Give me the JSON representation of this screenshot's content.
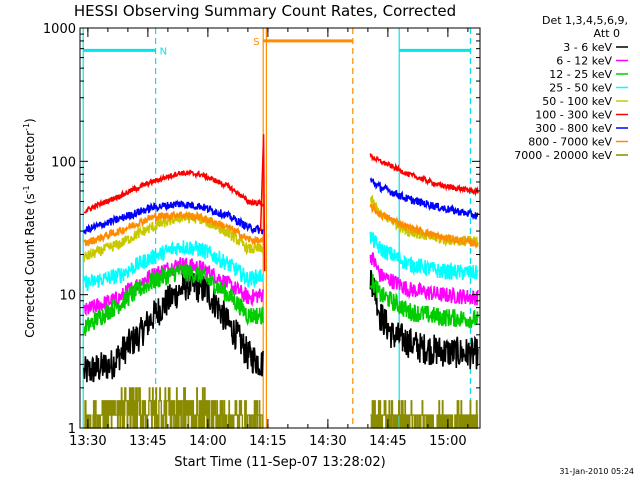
{
  "chart_data": {
    "type": "line",
    "title": "HESSI Observing Summary Count Rates, Corrected",
    "xlabel": "Start Time (11-Sep-07 13:28:02)",
    "ylabel_main": "Corrected Count Rate (s",
    "ylabel_sup1": "-1",
    "ylabel_mid": " detector",
    "ylabel_sup2": "-1",
    "ylabel_end": ")",
    "yscale": "log",
    "ylim": [
      1,
      1000
    ],
    "yticks": [
      1,
      10,
      100,
      1000
    ],
    "ytick_labels": [
      "1",
      "10",
      "100",
      "1000"
    ],
    "xlim": [
      "13:28:02",
      "15:08:00"
    ],
    "xticks": [
      "13:30",
      "13:45",
      "14:00",
      "14:15",
      "14:30",
      "14:45",
      "15:00"
    ],
    "x_range_minutes": [
      0,
      100
    ],
    "xtick_minutes": [
      1.97,
      16.97,
      31.97,
      46.97,
      61.97,
      76.97,
      91.97
    ],
    "legend": {
      "header1": "Det 1,3,4,5,6,9,",
      "header2": "Att 0",
      "placement": "outside-right-top"
    },
    "bands": [
      {
        "label": "N",
        "color": "#00e5ee",
        "start": 0.8,
        "end": 18.9,
        "level": 680
      },
      {
        "label": "S",
        "color": "#ff8c00",
        "start": 45.8,
        "end": 68.2,
        "level": 800
      },
      {
        "label": "",
        "color": "#00e5ee",
        "start": 79.8,
        "end": 97.6,
        "level": 680
      }
    ],
    "vlines": [
      {
        "x": 0.8,
        "color": "#00e5ee",
        "style": "solid"
      },
      {
        "x": 18.9,
        "color": "#00e5ee",
        "style": "dashed"
      },
      {
        "x": 45.8,
        "color": "#ff8c00",
        "style": "solid"
      },
      {
        "x": 46.6,
        "color": "#ff8c00",
        "style": "solid"
      },
      {
        "x": 68.2,
        "color": "#ff8c00",
        "style": "dashed"
      },
      {
        "x": 79.8,
        "color": "#00e5ee",
        "style": "solid"
      },
      {
        "x": 97.6,
        "color": "#00e5ee",
        "style": "dashed"
      }
    ],
    "segments": [
      [
        1.0,
        45.8
      ],
      [
        72.6,
        99.5
      ]
    ],
    "series": [
      {
        "name": "3 - 6 keV",
        "color": "#000000",
        "profile": [
          [
            1,
            2.6
          ],
          [
            8,
            3.0
          ],
          [
            15,
            5.0
          ],
          [
            23,
            9.5
          ],
          [
            27,
            12.0
          ],
          [
            31,
            11.0
          ],
          [
            37,
            6.0
          ],
          [
            42,
            3.5
          ],
          [
            45.8,
            3.0
          ],
          [
            72.6,
            14
          ],
          [
            75,
            7
          ],
          [
            78,
            5
          ],
          [
            85,
            4.0
          ],
          [
            92,
            3.7
          ],
          [
            99.5,
            3.6
          ]
        ],
        "noise": 0.12
      },
      {
        "name": "6 - 12 keV",
        "color": "#ff00ff",
        "profile": [
          [
            1,
            7.5
          ],
          [
            10,
            9.5
          ],
          [
            18,
            14
          ],
          [
            25,
            17
          ],
          [
            30,
            16
          ],
          [
            37,
            12
          ],
          [
            42,
            9.5
          ],
          [
            45.8,
            10
          ],
          [
            72.6,
            20
          ],
          [
            75,
            14
          ],
          [
            82,
            11
          ],
          [
            90,
            10
          ],
          [
            99.5,
            9.5
          ]
        ],
        "noise": 0.06
      },
      {
        "name": "12 - 25 keV",
        "color": "#00cc00",
        "profile": [
          [
            1,
            5.5
          ],
          [
            10,
            8.5
          ],
          [
            18,
            12.5
          ],
          [
            25,
            15
          ],
          [
            30,
            14
          ],
          [
            37,
            10
          ],
          [
            42,
            7.0
          ],
          [
            45.8,
            7.0
          ],
          [
            72.6,
            13
          ],
          [
            75,
            10
          ],
          [
            82,
            7.5
          ],
          [
            90,
            6.8
          ],
          [
            99.5,
            6.5
          ]
        ],
        "noise": 0.07
      },
      {
        "name": "25 - 50 keV",
        "color": "#00ffff",
        "profile": [
          [
            1,
            12
          ],
          [
            10,
            14
          ],
          [
            18,
            19
          ],
          [
            25,
            23
          ],
          [
            30,
            22
          ],
          [
            37,
            17
          ],
          [
            42,
            13
          ],
          [
            45.8,
            14
          ],
          [
            72.6,
            27
          ],
          [
            75,
            22
          ],
          [
            82,
            17
          ],
          [
            90,
            15
          ],
          [
            99.5,
            14.5
          ]
        ],
        "noise": 0.06
      },
      {
        "name": "50 - 100 keV",
        "color": "#c8c800",
        "profile": [
          [
            1,
            19
          ],
          [
            10,
            24
          ],
          [
            18,
            32
          ],
          [
            25,
            38
          ],
          [
            30,
            37
          ],
          [
            37,
            29
          ],
          [
            42,
            22
          ],
          [
            45.8,
            22
          ],
          [
            72.6,
            52
          ],
          [
            75,
            40
          ],
          [
            82,
            30
          ],
          [
            90,
            26
          ],
          [
            99.5,
            25
          ]
        ],
        "noise": 0.04
      },
      {
        "name": "100 - 300 keV",
        "color": "#ff0000",
        "profile": [
          [
            1,
            42
          ],
          [
            10,
            55
          ],
          [
            18,
            70
          ],
          [
            25,
            82
          ],
          [
            30,
            80
          ],
          [
            37,
            65
          ],
          [
            42,
            50
          ],
          [
            45.8,
            48
          ],
          [
            72.6,
            110
          ],
          [
            75,
            100
          ],
          [
            82,
            80
          ],
          [
            90,
            66
          ],
          [
            99.5,
            59
          ]
        ],
        "noise": 0.02
      },
      {
        "name": "300 - 800 keV",
        "color": "#0000ff",
        "profile": [
          [
            1,
            30
          ],
          [
            10,
            37
          ],
          [
            18,
            45
          ],
          [
            25,
            48
          ],
          [
            30,
            46
          ],
          [
            37,
            39
          ],
          [
            42,
            32
          ],
          [
            45.8,
            30
          ],
          [
            72.6,
            72
          ],
          [
            75,
            64
          ],
          [
            82,
            52
          ],
          [
            90,
            45
          ],
          [
            99.5,
            39
          ]
        ],
        "noise": 0.03
      },
      {
        "name": "800 - 7000 keV",
        "color": "#ff8c00",
        "profile": [
          [
            1,
            24
          ],
          [
            10,
            30
          ],
          [
            18,
            38
          ],
          [
            25,
            40
          ],
          [
            30,
            38
          ],
          [
            37,
            32
          ],
          [
            42,
            26
          ],
          [
            45.8,
            25
          ],
          [
            72.6,
            46
          ],
          [
            75,
            40
          ],
          [
            82,
            32
          ],
          [
            90,
            27
          ],
          [
            99.5,
            24
          ]
        ],
        "noise": 0.03
      },
      {
        "name": "7000 - 20000 keV",
        "color": "#8b8b00",
        "profile": [
          [
            1,
            1.5
          ],
          [
            10,
            2.0
          ],
          [
            20,
            2.5
          ],
          [
            30,
            2.0
          ],
          [
            38,
            1.6
          ],
          [
            45.8,
            1.4
          ],
          [
            72.6,
            1.8
          ],
          [
            78,
            1.5
          ],
          [
            85,
            1.3
          ],
          [
            99.5,
            1.3
          ]
        ],
        "noise": 0.0,
        "stepped": true
      }
    ],
    "flare": {
      "x": 45.9,
      "peak": 160,
      "base": 30
    }
  },
  "timestamp": "31-Jan-2010 05:24"
}
